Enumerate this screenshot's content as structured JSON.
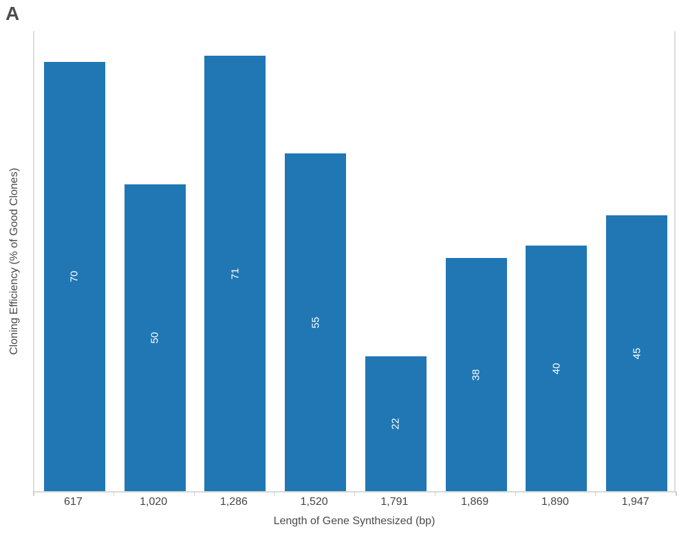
{
  "panel_label": "A",
  "colors": {
    "bar": "#2077B4",
    "bar_value_text": "#ffffff",
    "axis_line": "#d9d9d9",
    "tick_mark": "#cfcfcf",
    "axis_text": "#444444",
    "title_text": "#4a4a4a",
    "panel_label_text": "#4d4d4d"
  },
  "chart_data": {
    "type": "bar",
    "title": "",
    "categories": [
      "617",
      "1,020",
      "1,286",
      "1,520",
      "1,791",
      "1,869",
      "1,890",
      "1,947"
    ],
    "values": [
      70,
      50,
      71,
      55,
      22,
      38,
      40,
      45
    ],
    "value_labels": [
      "70",
      "50",
      "71",
      "55",
      "22",
      "38",
      "40",
      "45"
    ],
    "value_label_position": "inside-center-rotated",
    "xlabel": "Length of Gene Synthesized (bp)",
    "ylabel": "Cloning Efficiency (% of Good Clones)",
    "ylim": [
      0,
      75
    ],
    "grid": false,
    "legend": "none",
    "bar_color": "#2077B4"
  }
}
